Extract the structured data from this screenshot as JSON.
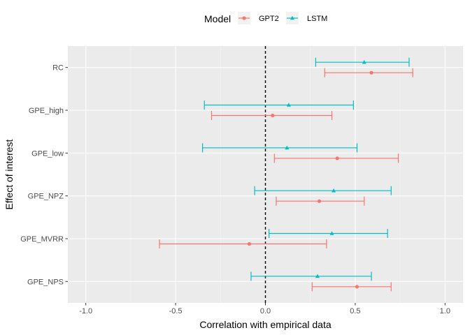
{
  "chart_data": {
    "type": "errorbar",
    "xlabel": "Correlation with empirical data",
    "ylabel": "Effect of interest",
    "xlim": [
      -1.1,
      1.1
    ],
    "x_ticks": [
      -1.0,
      -0.5,
      0.0,
      0.5,
      1.0
    ],
    "x_tick_labels": [
      "-1.0",
      "-0.5",
      "0.0",
      "0.5",
      "1.0"
    ],
    "reference_line": 0,
    "categories": [
      "RC",
      "GPE_high",
      "GPE_low",
      "GPE_NPZ",
      "GPE_MVRR",
      "GPE_NPS"
    ],
    "legend": {
      "title": "Model",
      "position": "top"
    },
    "grid": true,
    "series": [
      {
        "name": "GPT2",
        "color": "#F8766D",
        "marker": "circle",
        "points": [
          {
            "category": "RC",
            "estimate": 0.59,
            "lower": 0.33,
            "upper": 0.82
          },
          {
            "category": "GPE_high",
            "estimate": 0.04,
            "lower": -0.3,
            "upper": 0.37
          },
          {
            "category": "GPE_low",
            "estimate": 0.4,
            "lower": 0.05,
            "upper": 0.74
          },
          {
            "category": "GPE_NPZ",
            "estimate": 0.3,
            "lower": 0.06,
            "upper": 0.55
          },
          {
            "category": "GPE_MVRR",
            "estimate": -0.09,
            "lower": -0.59,
            "upper": 0.34
          },
          {
            "category": "GPE_NPS",
            "estimate": 0.51,
            "lower": 0.26,
            "upper": 0.7
          }
        ]
      },
      {
        "name": "LSTM",
        "color": "#00BFC4",
        "marker": "triangle",
        "points": [
          {
            "category": "RC",
            "estimate": 0.55,
            "lower": 0.28,
            "upper": 0.8
          },
          {
            "category": "GPE_high",
            "estimate": 0.13,
            "lower": -0.34,
            "upper": 0.49
          },
          {
            "category": "GPE_low",
            "estimate": 0.12,
            "lower": -0.35,
            "upper": 0.51
          },
          {
            "category": "GPE_NPZ",
            "estimate": 0.38,
            "lower": -0.06,
            "upper": 0.7
          },
          {
            "category": "GPE_MVRR",
            "estimate": 0.37,
            "lower": 0.02,
            "upper": 0.68
          },
          {
            "category": "GPE_NPS",
            "estimate": 0.29,
            "lower": -0.08,
            "upper": 0.59
          }
        ]
      }
    ]
  }
}
